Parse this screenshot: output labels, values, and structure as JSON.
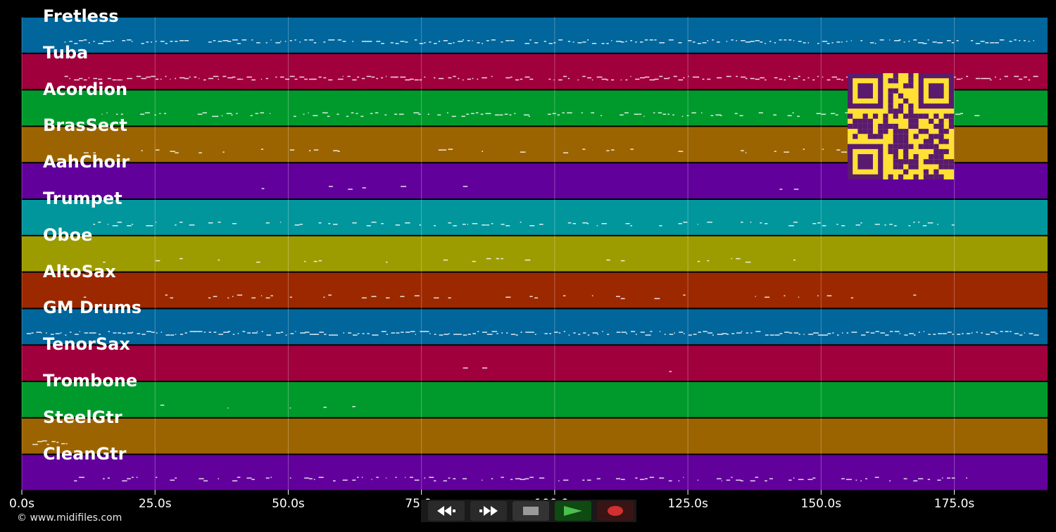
{
  "tracks": [
    {
      "name": "Fretless",
      "color": "#00669c"
    },
    {
      "name": "Tuba",
      "color": "#a0003c"
    },
    {
      "name": "Acordion",
      "color": "#009a2c"
    },
    {
      "name": "BrasSect",
      "color": "#9c6400"
    },
    {
      "name": "AahChoir",
      "color": "#62009c"
    },
    {
      "name": "Trumpet",
      "color": "#00969c"
    },
    {
      "name": "Oboe",
      "color": "#9c9c00"
    },
    {
      "name": "AltoSax",
      "color": "#9c2800"
    },
    {
      "name": "GM Drums",
      "color": "#00669c"
    },
    {
      "name": "TenorSax",
      "color": "#a0003c"
    },
    {
      "name": "Trombone",
      "color": "#009a2c"
    },
    {
      "name": "SteelGtr",
      "color": "#9c6400"
    },
    {
      "name": "CleanGtr",
      "color": "#62009c"
    }
  ],
  "time_axis": {
    "ticks": [
      "0.0s",
      "25.0s",
      "50.0s",
      "75.0s",
      "100.0s",
      "125.0s",
      "150.0s",
      "175.0s"
    ],
    "tick_values": [
      0,
      25,
      50,
      75,
      100,
      125,
      150,
      175
    ],
    "max_seconds": 192.5
  },
  "copyright": "© www.midifiles.com",
  "transport": {
    "rewind_icon": "rewind-icon",
    "forward_icon": "fast-forward-icon",
    "stop_icon": "stop-icon",
    "play_icon": "play-icon",
    "record_icon": "record-icon"
  },
  "qr_code": {
    "fg": "#5a1a6e",
    "bg": "#ffe033"
  }
}
